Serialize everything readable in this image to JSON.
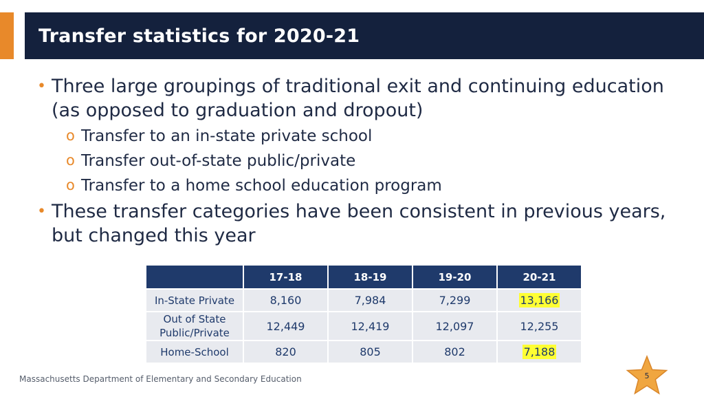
{
  "slide": {
    "title": "Transfer statistics for 2020-21",
    "colors": {
      "title_bg": "#14213d",
      "accent": "#e8892a",
      "table_header": "#1f3a6b",
      "highlight": "#ffff33"
    }
  },
  "bullets": [
    {
      "text": "Three large groupings of traditional exit and continuing education (as opposed to graduation and dropout)",
      "subitems": [
        "Transfer to an in-state private school",
        "Transfer out-of-state public/private",
        "Transfer to a home school education program"
      ]
    },
    {
      "text": "These transfer categories have been consistent in previous years, but changed this year",
      "subitems": []
    }
  ],
  "table": {
    "headers": [
      "",
      "17-18",
      "18-19",
      "19-20",
      "20-21"
    ],
    "rows": [
      {
        "label": "In-State Private",
        "values": [
          "8,160",
          "7,984",
          "7,299",
          "13,166"
        ]
      },
      {
        "label": "Out of State Public/Private",
        "values": [
          "12,449",
          "12,419",
          "12,097",
          "12,255"
        ]
      },
      {
        "label": "Home-School",
        "values": [
          "820",
          "805",
          "802",
          "7,188"
        ]
      }
    ]
  },
  "footer": {
    "org": "Massachusetts Department of Elementary and Secondary Education"
  },
  "page_number": "5"
}
